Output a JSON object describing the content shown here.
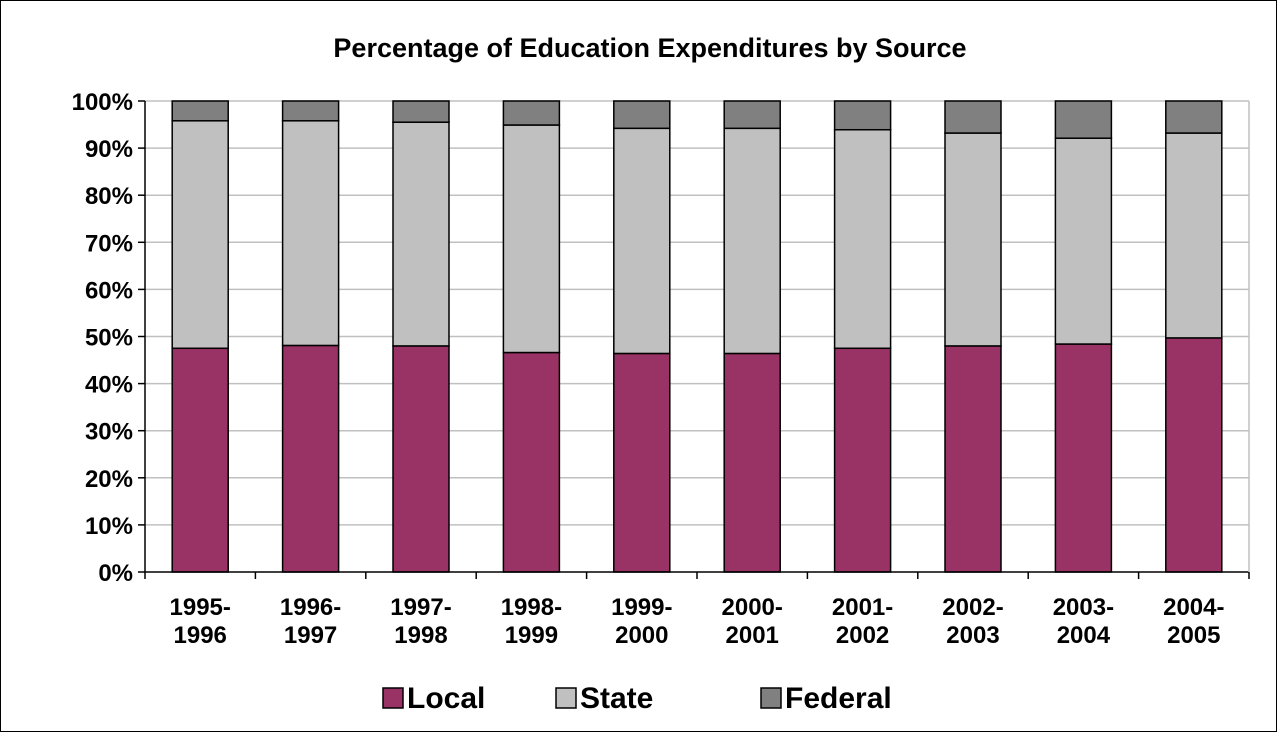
{
  "chart_data": {
    "type": "bar",
    "stacked": true,
    "title": "Percentage of Education Expenditures by Source",
    "xlabel": "",
    "ylabel": "",
    "ylim": [
      0,
      100
    ],
    "yticks": [
      "0%",
      "10%",
      "20%",
      "30%",
      "40%",
      "50%",
      "60%",
      "70%",
      "80%",
      "90%",
      "100%"
    ],
    "grid": true,
    "legend_position": "bottom",
    "categories": [
      [
        "1995-",
        "1996"
      ],
      [
        "1996-",
        "1997"
      ],
      [
        "1997-",
        "1998"
      ],
      [
        "1998-",
        "1999"
      ],
      [
        "1999-",
        "2000"
      ],
      [
        "2000-",
        "2001"
      ],
      [
        "2001-",
        "2002"
      ],
      [
        "2002-",
        "2003"
      ],
      [
        "2003-",
        "2004"
      ],
      [
        "2004-",
        "2005"
      ]
    ],
    "series": [
      {
        "name": "Local",
        "color": "#993366",
        "values": [
          47.5,
          48.1,
          48.0,
          46.6,
          46.4,
          46.4,
          47.5,
          48.0,
          48.4,
          49.7
        ]
      },
      {
        "name": "State",
        "color": "#C0C0C0",
        "values": [
          48.3,
          47.7,
          47.5,
          48.3,
          47.8,
          47.8,
          46.4,
          45.2,
          43.7,
          43.5
        ]
      },
      {
        "name": "Federal",
        "color": "#808080",
        "values": [
          4.2,
          4.2,
          4.5,
          5.1,
          5.8,
          5.8,
          6.1,
          6.8,
          7.9,
          6.8
        ]
      }
    ]
  }
}
